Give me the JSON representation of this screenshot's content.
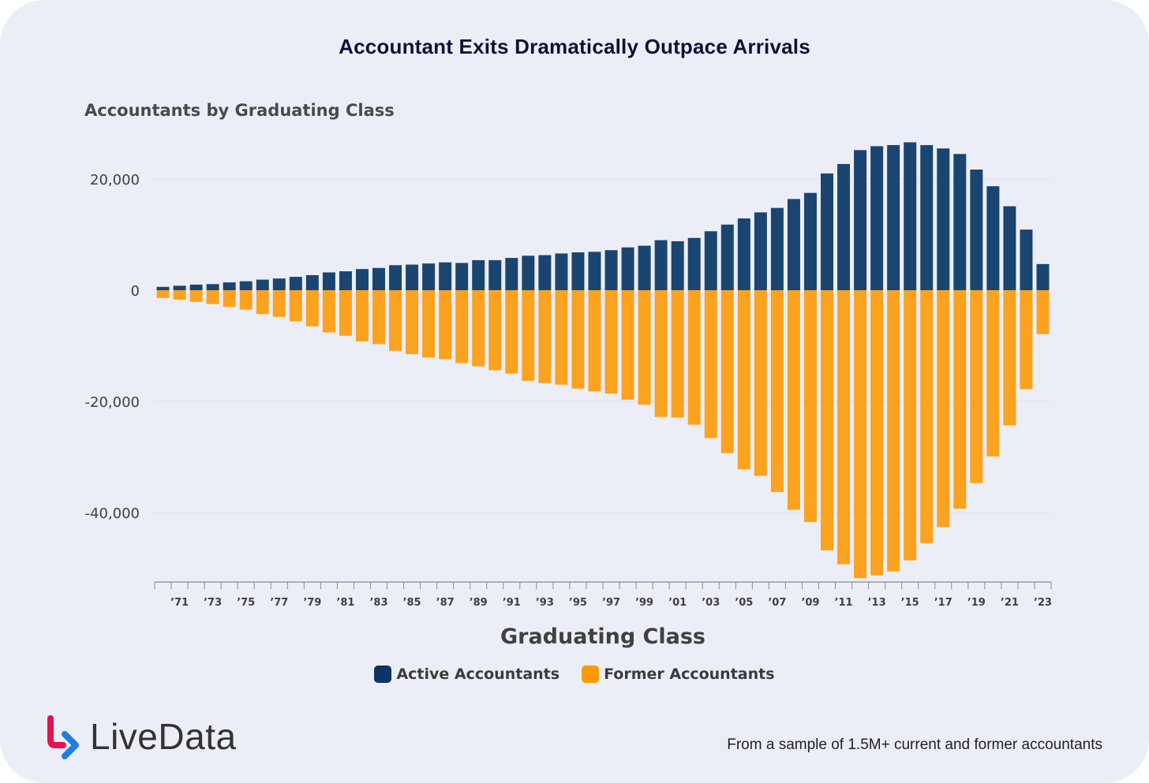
{
  "title": "Accountant Exits Dramatically Outpace Arrivals",
  "footnote": "From a sample of 1.5M+ current and former accountants",
  "logo": {
    "text": "LiveData",
    "icon": "livedata-arrow-icon"
  },
  "colors": {
    "active": "#1b4571",
    "former": "#fba21f",
    "legend_active": "#0f3363",
    "legend_former": "#fb9a06"
  },
  "chart_data": {
    "type": "bar",
    "stacked_diverging": true,
    "title": "Accountants by Graduating Class",
    "xlabel": "Graduating Class",
    "ylabel": "",
    "ylim": [
      -52500,
      27000
    ],
    "yticks": [
      20000,
      0,
      -20000,
      -40000
    ],
    "ytick_labels": [
      "20,000",
      "0",
      "-20,000",
      "-40,000"
    ],
    "grid": true,
    "legend_position": "bottom-center",
    "categories": [
      "1970",
      "1971",
      "1972",
      "1973",
      "1974",
      "1975",
      "1976",
      "1977",
      "1978",
      "1979",
      "1980",
      "1981",
      "1982",
      "1983",
      "1984",
      "1985",
      "1986",
      "1987",
      "1988",
      "1989",
      "1990",
      "1991",
      "1992",
      "1993",
      "1994",
      "1995",
      "1996",
      "1997",
      "1998",
      "1999",
      "2000",
      "2001",
      "2002",
      "2003",
      "2004",
      "2005",
      "2006",
      "2007",
      "2008",
      "2009",
      "2010",
      "2011",
      "2012",
      "2013",
      "2014",
      "2015",
      "2016",
      "2017",
      "2018",
      "2019",
      "2020",
      "2021",
      "2022",
      "2023"
    ],
    "xtick_labels": [
      "’71",
      "’73",
      "’75",
      "’77",
      "’79",
      "’81",
      "’83",
      "’85",
      "’87",
      "’89",
      "’91",
      "’93",
      "’95",
      "’97",
      "’99",
      "’01",
      "’03",
      "’05",
      "’07",
      "’09",
      "’11",
      "’13",
      "’15",
      "’17",
      "’19",
      "’21",
      "’23"
    ],
    "series": [
      {
        "name": "Active Accountants",
        "values": [
          600,
          800,
          1000,
          1100,
          1400,
          1600,
          1900,
          2100,
          2400,
          2700,
          3200,
          3400,
          3800,
          4000,
          4500,
          4600,
          4800,
          5000,
          4900,
          5400,
          5400,
          5800,
          6200,
          6300,
          6600,
          6800,
          6900,
          7200,
          7700,
          8000,
          9000,
          8800,
          9400,
          10600,
          11800,
          12900,
          14000,
          14800,
          16400,
          17500,
          21000,
          22700,
          25200,
          25900,
          26100,
          26600,
          26100,
          25500,
          24500,
          21700,
          18700,
          15100,
          10900,
          4700
        ]
      },
      {
        "name": "Former Accountants",
        "values": [
          -1400,
          -1700,
          -2100,
          -2500,
          -3000,
          -3500,
          -4300,
          -4800,
          -5600,
          -6500,
          -7600,
          -8200,
          -9200,
          -9700,
          -10900,
          -11500,
          -12100,
          -12400,
          -13100,
          -13700,
          -14400,
          -15000,
          -16300,
          -16700,
          -17000,
          -17700,
          -18200,
          -18600,
          -19700,
          -20600,
          -22800,
          -22900,
          -24200,
          -26600,
          -29300,
          -32200,
          -33400,
          -36300,
          -39500,
          -41700,
          -46800,
          -49300,
          -51800,
          -51300,
          -50600,
          -48600,
          -45500,
          -42600,
          -39300,
          -34700,
          -29900,
          -24300,
          -17800,
          -7900
        ]
      }
    ]
  }
}
